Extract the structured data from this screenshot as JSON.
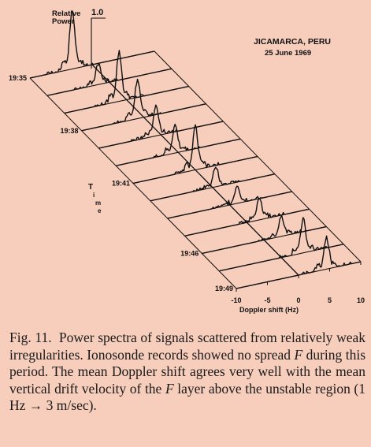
{
  "figure": {
    "site": "JICAMARCA, PERU",
    "date": "25 June 1969",
    "y_axis_title_line1": "Relative",
    "y_axis_title_line2": "Power",
    "y_axis_value": "1.0",
    "time_axis_label": [
      "T",
      "i",
      "m",
      "e"
    ],
    "time_labels": [
      "19:35",
      "19:38",
      "19:41",
      "19:46",
      "19:49"
    ],
    "doppler_ticks": [
      "-10",
      "-5",
      "0",
      "5",
      "10"
    ],
    "doppler_axis_label": "Doppler shift (Hz)",
    "ink_color": "#111111"
  },
  "chart_data": {
    "type": "line",
    "title": "",
    "xlabel": "Doppler shift (Hz)",
    "ylabel": "Relative Power",
    "zlabel": "Time",
    "xlim": [
      -10,
      10
    ],
    "ylim": [
      0,
      1.0
    ],
    "time_ticks": [
      "19:35",
      "19:38",
      "19:41",
      "19:46",
      "19:49"
    ],
    "series": [
      {
        "peak_x": -3.2,
        "peak_y": 0.95
      },
      {
        "peak_x": -1.8,
        "peak_y": 0.35
      },
      {
        "peak_x": -1.2,
        "peak_y": 0.8
      },
      {
        "peak_x": -1.0,
        "peak_y": 0.65
      },
      {
        "peak_x": -0.8,
        "peak_y": 0.5
      },
      {
        "peak_x": -0.5,
        "peak_y": 0.45
      },
      {
        "peak_x": 0.0,
        "peak_y": 0.7
      },
      {
        "peak_x": 0.5,
        "peak_y": 0.35
      },
      {
        "peak_x": 1.2,
        "peak_y": 0.3
      },
      {
        "peak_x": 2.0,
        "peak_y": 0.35
      },
      {
        "peak_x": 2.8,
        "peak_y": 0.32
      },
      {
        "peak_x": 3.5,
        "peak_y": 0.55
      },
      {
        "peak_x": 4.5,
        "peak_y": 0.5
      }
    ]
  },
  "caption": {
    "label": "Fig. 11.",
    "text_before_f1": "Power spectra of signals scattered from relatively weak irregularities. Ionosonde records showed no spread",
    "f_symbol": "F",
    "text_mid": "during this period. The mean Doppler shift agrees very well with the mean vertical drift velocity of the",
    "text_after_f2": "layer above the unstable region (1 Hz → 3 m/sec)."
  }
}
